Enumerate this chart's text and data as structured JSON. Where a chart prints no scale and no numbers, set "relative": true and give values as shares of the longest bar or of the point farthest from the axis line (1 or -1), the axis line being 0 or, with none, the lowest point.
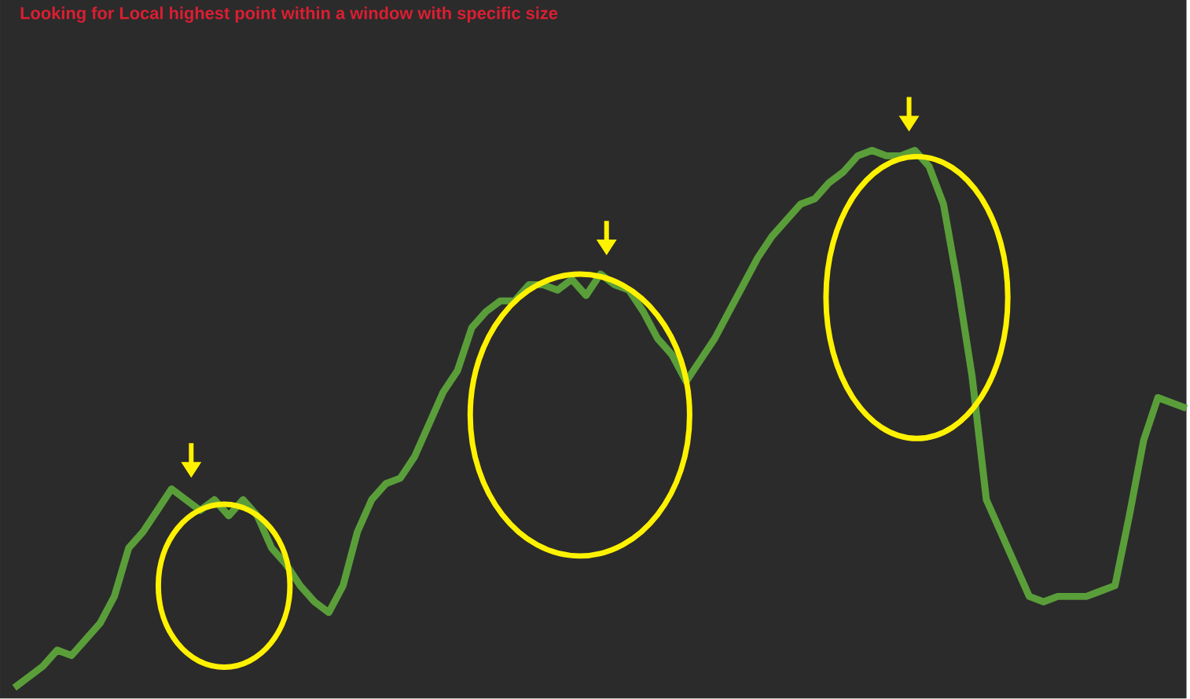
{
  "chart_data": {
    "type": "line",
    "title": "Looking for Local highest point within a window with specific size",
    "relative": true,
    "categories": [
      null,
      null,
      null,
      null,
      null,
      null,
      null,
      null,
      null,
      null,
      null,
      null,
      null,
      null,
      null,
      null,
      null,
      null,
      null,
      null,
      null,
      null,
      null,
      null,
      null,
      null,
      null,
      null,
      null,
      null,
      null,
      null,
      null,
      null,
      null,
      null,
      null,
      null,
      null,
      null,
      null,
      null,
      null,
      null,
      null,
      null,
      null,
      null,
      null,
      null,
      null,
      null,
      null,
      null,
      null,
      null,
      null,
      null,
      null,
      null,
      null,
      null,
      null,
      null,
      null,
      null,
      null,
      null,
      null,
      null,
      null,
      null,
      null,
      null,
      null,
      null,
      null,
      null,
      null,
      null,
      null,
      null,
      null
    ],
    "series": [
      {
        "color": "#5a9e3a",
        "values": [
          0,
          0.02,
          0.04,
          0.07,
          0.06,
          0.09,
          0.12,
          0.17,
          0.26,
          0.29,
          0.33,
          0.37,
          0.35,
          0.33,
          0.35,
          0.32,
          0.35,
          0.32,
          0.26,
          0.23,
          0.19,
          0.16,
          0.14,
          0.19,
          0.29,
          0.35,
          0.38,
          0.39,
          0.43,
          0.49,
          0.55,
          0.59,
          0.67,
          0.7,
          0.72,
          0.72,
          0.75,
          0.75,
          0.74,
          0.76,
          0.73,
          0.77,
          0.75,
          0.74,
          0.7,
          0.65,
          0.62,
          0.57,
          0.61,
          0.65,
          0.7,
          0.75,
          0.8,
          0.84,
          0.87,
          0.9,
          0.91,
          0.94,
          0.96,
          0.99,
          1,
          0.99,
          0.99,
          1,
          0.97,
          0.9,
          0.75,
          0.58,
          0.35,
          0.29,
          0.23,
          0.17,
          0.16,
          0.17,
          0.17,
          0.17,
          0.18,
          0.19,
          0.32,
          0.46,
          0.54,
          0.53,
          0.52
        ]
      }
    ],
    "line_style": "solid"
  }
}
